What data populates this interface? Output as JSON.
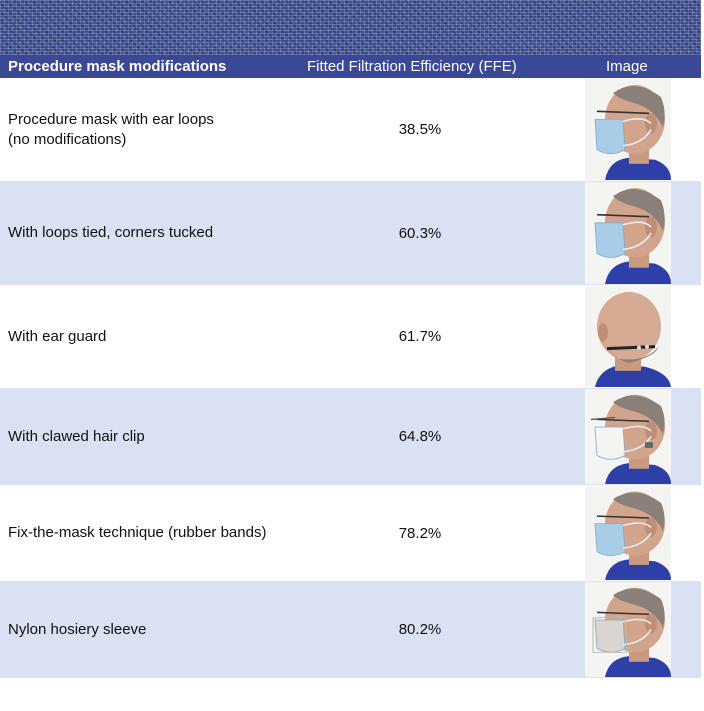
{
  "header": {
    "col_modification": "Procedure mask modifications",
    "col_ffe": "Fitted Filtration Efficiency (FFE)",
    "col_image": "Image"
  },
  "rows": [
    {
      "label": "Procedure mask with ear loops\n(no modifications)",
      "ffe": "38.5%",
      "image": "man-wearing-mask-profile"
    },
    {
      "label": "With loops tied, corners tucked",
      "ffe": "60.3%",
      "image": "man-wearing-mask-profile"
    },
    {
      "label": "With ear guard",
      "ffe": "61.7%",
      "image": "man-back-of-head-ear-guard"
    },
    {
      "label": "With clawed hair clip",
      "ffe": "64.8%",
      "image": "man-wearing-mask-profile"
    },
    {
      "label": "Fix-the-mask technique (rubber bands)",
      "ffe": "78.2%",
      "image": "man-wearing-mask-profile"
    },
    {
      "label": "Nylon hosiery sleeve",
      "ffe": "80.2%",
      "image": "man-wearing-mask-profile"
    }
  ],
  "colors": {
    "header_bg": "#3a4896",
    "alt_row_bg": "#d9e1f2",
    "shirt": "#2f3fa8",
    "mask": "#a9cde6"
  }
}
